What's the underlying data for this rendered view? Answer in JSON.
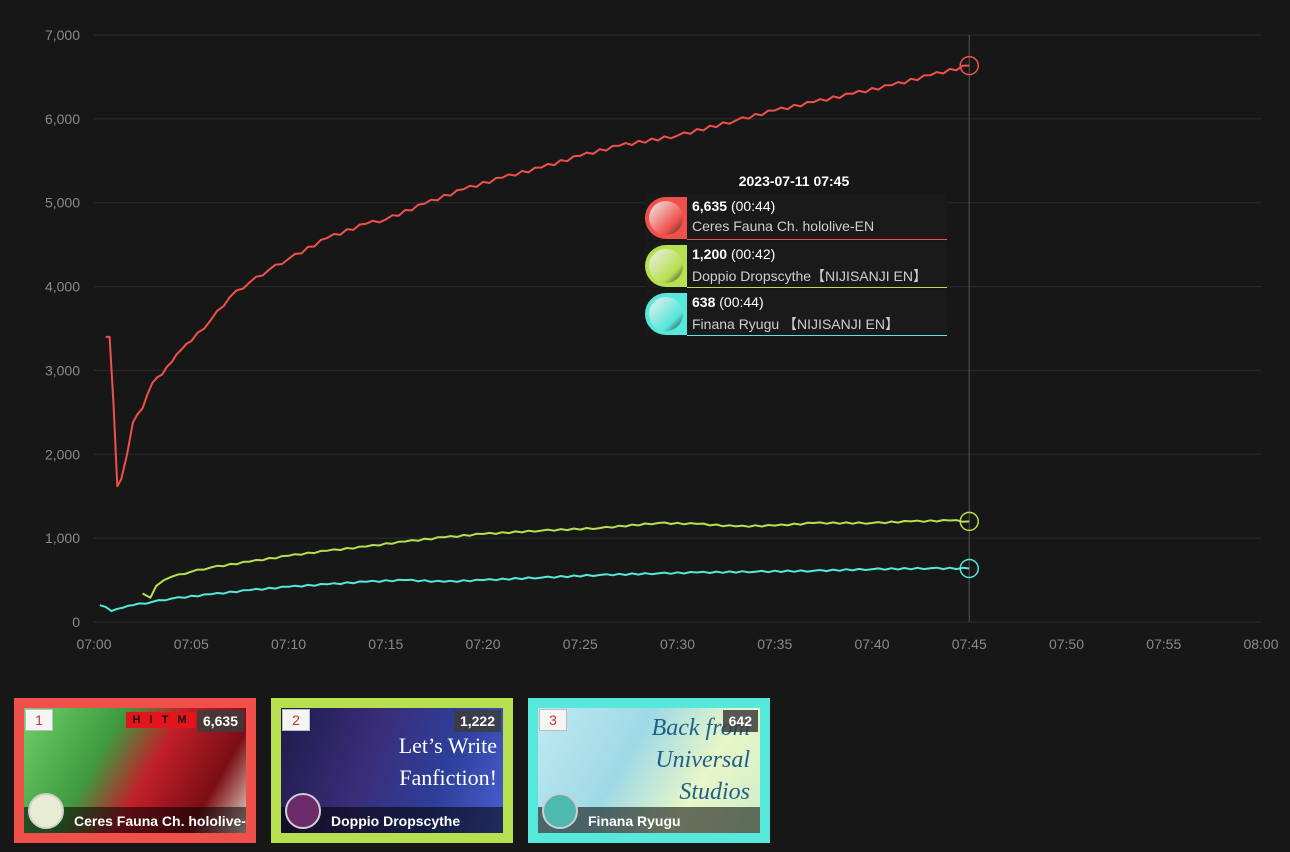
{
  "chart_data": {
    "type": "line",
    "ylim": [
      0,
      7000
    ],
    "y_ticks": [
      "0",
      "1,000",
      "2,000",
      "3,000",
      "4,000",
      "5,000",
      "6,000",
      "7,000"
    ],
    "x_ticks": [
      "07:00",
      "07:05",
      "07:10",
      "07:15",
      "07:20",
      "07:25",
      "07:30",
      "07:35",
      "07:40",
      "07:45",
      "07:50",
      "07:55",
      "08:00"
    ],
    "xlim_minutes": [
      0,
      60
    ],
    "grid": "horizontal",
    "crosshair_minute": 45,
    "series": [
      {
        "name": "Ceres Fauna Ch. hololive-EN",
        "color": "#f0504a",
        "x": [
          0.6,
          0.8,
          1.0,
          1.2,
          1.4,
          1.7,
          2.0,
          2.5,
          3.0,
          3.5,
          4.0,
          4.5,
          5.0,
          6.0,
          7.0,
          8.0,
          9.0,
          10.0,
          12.0,
          14.0,
          15.0,
          17.0,
          19.0,
          21.0,
          23.0,
          25.0,
          27.0,
          30.0,
          33.0,
          35.0,
          37.0,
          39.0,
          41.0,
          43.0,
          45.0
        ],
        "y": [
          3400,
          3400,
          2600,
          1620,
          1700,
          2000,
          2380,
          2550,
          2850,
          2950,
          3100,
          3250,
          3350,
          3600,
          3880,
          4050,
          4200,
          4330,
          4580,
          4750,
          4800,
          4990,
          5160,
          5300,
          5420,
          5560,
          5680,
          5800,
          5980,
          6100,
          6200,
          6300,
          6400,
          6520,
          6635
        ]
      },
      {
        "name": "Doppio Dropscythe【NIJISANJI EN】",
        "color": "#b6e04f",
        "x": [
          2.5,
          2.9,
          3.2,
          3.6,
          4.0,
          5.0,
          6.0,
          8.0,
          10.0,
          12.0,
          14.0,
          16.0,
          18.0,
          20.0,
          23.0,
          26.0,
          29.0,
          31.0,
          33.0,
          35.0,
          37.0,
          40.0,
          42.0,
          44.0,
          45.0
        ],
        "y": [
          340,
          290,
          430,
          500,
          540,
          600,
          650,
          720,
          790,
          850,
          900,
          960,
          1010,
          1050,
          1090,
          1120,
          1180,
          1170,
          1140,
          1150,
          1180,
          1180,
          1200,
          1210,
          1200
        ]
      },
      {
        "name": "Finana Ryugu 【NIJISANJI EN】",
        "color": "#55e8db",
        "x": [
          0.3,
          0.6,
          0.9,
          1.5,
          2.0,
          3.0,
          4.0,
          6.0,
          8.0,
          10.0,
          12.0,
          14.0,
          16.0,
          18.0,
          20.0,
          23.0,
          26.0,
          29.0,
          31.0,
          34.0,
          37.0,
          40.0,
          43.0,
          45.0
        ],
        "y": [
          200,
          180,
          130,
          170,
          200,
          240,
          280,
          330,
          380,
          420,
          450,
          480,
          500,
          480,
          500,
          530,
          560,
          580,
          590,
          600,
          610,
          630,
          640,
          638
        ]
      }
    ]
  },
  "tooltip": {
    "time": "2023-07-11 07:45",
    "rows": [
      {
        "value": "6,635",
        "duration": "(00:44)",
        "name": "Ceres Fauna Ch. hololive-EN",
        "color": "#f0504a"
      },
      {
        "value": "1,200",
        "duration": "(00:42)",
        "name": "Doppio Dropscythe【NIJISANJI EN】",
        "color": "#b6e04f"
      },
      {
        "value": "638",
        "duration": "(00:44)",
        "name": "Finana Ryugu 【NIJISANJI EN】",
        "color": "#55e8db"
      }
    ]
  },
  "cards": [
    {
      "rank": "1",
      "count": "6,635",
      "name": "Ceres Fauna Ch. hololive-",
      "color": "#f0504a",
      "thumb_title": "",
      "banner": "H I T M"
    },
    {
      "rank": "2",
      "count": "1,222",
      "name": "Doppio Dropscythe",
      "color": "#b6e04f",
      "thumb_title": "Let’s Write Fanfiction!",
      "banner": ""
    },
    {
      "rank": "3",
      "count": "642",
      "name": "Finana Ryugu",
      "color": "#55e8db",
      "thumb_title": "Back from Universal Studios",
      "banner": ""
    }
  ]
}
